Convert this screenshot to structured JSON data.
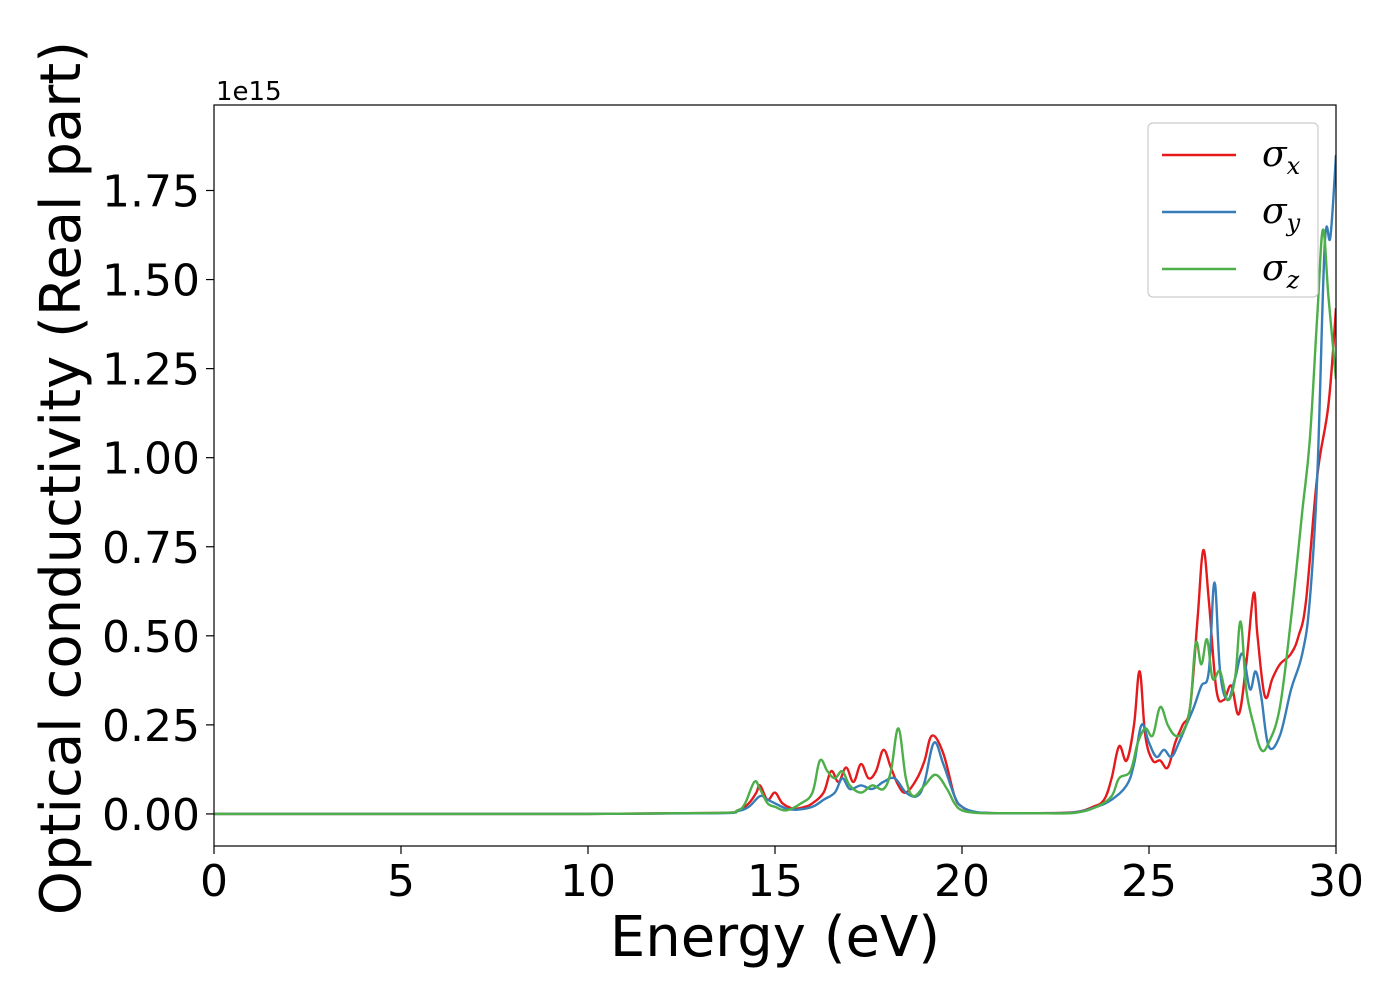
{
  "chart_data": {
    "type": "line",
    "xlabel": "Energy (eV)",
    "ylabel": "Optical conductivity (Real part)",
    "offset_text": "1e15",
    "y_scale_factor": 1000000000000000.0,
    "xlim": [
      0,
      30
    ],
    "ylim": [
      -0.09,
      1.99
    ],
    "xticks": [
      0,
      5,
      10,
      15,
      20,
      25,
      30
    ],
    "xtick_labels": [
      "0",
      "5",
      "10",
      "15",
      "20",
      "25",
      "30"
    ],
    "yticks": [
      0,
      0.25,
      0.5,
      0.75,
      1.0,
      1.25,
      1.5,
      1.75
    ],
    "ytick_labels": [
      "0.00",
      "0.25",
      "0.50",
      "0.75",
      "1.00",
      "1.25",
      "1.50",
      "1.75"
    ],
    "grid": false,
    "legend_position": "top-right",
    "series": [
      {
        "name": "σ",
        "subscript": "x",
        "color": "#e41a1c",
        "x": [
          0,
          5,
          10,
          13.5,
          14.0,
          14.3,
          14.5,
          14.6,
          14.8,
          15.0,
          15.2,
          15.5,
          15.8,
          16.0,
          16.3,
          16.5,
          16.7,
          16.9,
          17.1,
          17.3,
          17.5,
          17.7,
          17.9,
          18.1,
          18.3,
          18.5,
          18.8,
          19.0,
          19.2,
          19.5,
          19.8,
          20.0,
          20.3,
          20.7,
          21.0,
          22.0,
          23.0,
          23.5,
          23.8,
          24.0,
          24.2,
          24.4,
          24.6,
          24.75,
          24.9,
          25.1,
          25.3,
          25.5,
          25.7,
          25.9,
          26.1,
          26.3,
          26.45,
          26.6,
          26.8,
          27.0,
          27.2,
          27.4,
          27.6,
          27.8,
          27.9,
          28.1,
          28.3,
          28.5,
          28.8,
          29.0,
          29.2,
          29.5,
          29.8,
          30.0
        ],
        "values": [
          0,
          0,
          0,
          0.003,
          0.01,
          0.03,
          0.06,
          0.08,
          0.04,
          0.06,
          0.03,
          0.015,
          0.02,
          0.03,
          0.06,
          0.12,
          0.09,
          0.13,
          0.09,
          0.14,
          0.1,
          0.12,
          0.18,
          0.13,
          0.08,
          0.06,
          0.1,
          0.15,
          0.22,
          0.17,
          0.05,
          0.02,
          0.005,
          0.003,
          0.002,
          0.002,
          0.005,
          0.02,
          0.04,
          0.1,
          0.19,
          0.15,
          0.25,
          0.4,
          0.22,
          0.15,
          0.15,
          0.13,
          0.2,
          0.25,
          0.3,
          0.55,
          0.74,
          0.6,
          0.35,
          0.32,
          0.36,
          0.28,
          0.42,
          0.62,
          0.5,
          0.33,
          0.38,
          0.42,
          0.45,
          0.5,
          0.6,
          0.95,
          1.15,
          1.42
        ]
      },
      {
        "name": "σ",
        "subscript": "y",
        "color": "#377eb8",
        "x": [
          0,
          5,
          10,
          13.5,
          14.0,
          14.3,
          14.6,
          14.8,
          15.0,
          15.3,
          15.6,
          16.0,
          16.3,
          16.6,
          16.8,
          17.0,
          17.3,
          17.6,
          17.9,
          18.2,
          18.5,
          18.8,
          19.0,
          19.25,
          19.5,
          19.8,
          20.0,
          20.4,
          21.0,
          22.0,
          23.0,
          23.6,
          24.0,
          24.4,
          24.6,
          24.8,
          25.0,
          25.2,
          25.4,
          25.6,
          25.8,
          26.0,
          26.2,
          26.4,
          26.6,
          26.75,
          26.9,
          27.1,
          27.3,
          27.5,
          27.7,
          27.85,
          28.0,
          28.2,
          28.5,
          28.8,
          29.1,
          29.3,
          29.5,
          29.7,
          29.85,
          30.0
        ],
        "values": [
          0,
          0,
          0,
          0.002,
          0.008,
          0.02,
          0.05,
          0.04,
          0.03,
          0.015,
          0.012,
          0.02,
          0.04,
          0.06,
          0.1,
          0.07,
          0.08,
          0.07,
          0.09,
          0.1,
          0.06,
          0.05,
          0.09,
          0.2,
          0.14,
          0.05,
          0.02,
          0.005,
          0.002,
          0.002,
          0.004,
          0.02,
          0.04,
          0.08,
          0.14,
          0.25,
          0.2,
          0.16,
          0.18,
          0.16,
          0.2,
          0.25,
          0.3,
          0.36,
          0.4,
          0.65,
          0.4,
          0.32,
          0.38,
          0.45,
          0.35,
          0.4,
          0.33,
          0.19,
          0.22,
          0.35,
          0.45,
          0.6,
          0.95,
          1.6,
          1.62,
          1.85
        ]
      },
      {
        "name": "σ",
        "subscript": "z",
        "color": "#4daf4a",
        "x": [
          0,
          5,
          10,
          13.5,
          14.0,
          14.2,
          14.45,
          14.6,
          14.8,
          15.0,
          15.3,
          15.7,
          16.0,
          16.2,
          16.4,
          16.6,
          16.8,
          17.0,
          17.3,
          17.6,
          17.9,
          18.1,
          18.3,
          18.5,
          18.7,
          19.0,
          19.3,
          19.6,
          19.8,
          20.0,
          20.4,
          21.0,
          22.0,
          23.0,
          23.6,
          24.0,
          24.2,
          24.5,
          24.7,
          24.9,
          25.1,
          25.3,
          25.5,
          25.7,
          25.9,
          26.1,
          26.25,
          26.4,
          26.55,
          26.7,
          26.9,
          27.1,
          27.3,
          27.45,
          27.6,
          27.8,
          28.0,
          28.2,
          28.5,
          28.8,
          29.1,
          29.3,
          29.5,
          29.65,
          29.8,
          30.0
        ],
        "values": [
          0,
          0,
          0,
          0.003,
          0.01,
          0.03,
          0.09,
          0.07,
          0.03,
          0.02,
          0.01,
          0.03,
          0.06,
          0.15,
          0.12,
          0.1,
          0.12,
          0.08,
          0.06,
          0.08,
          0.07,
          0.12,
          0.24,
          0.1,
          0.05,
          0.08,
          0.11,
          0.07,
          0.03,
          0.01,
          0.003,
          0.002,
          0.002,
          0.003,
          0.02,
          0.05,
          0.1,
          0.12,
          0.2,
          0.24,
          0.22,
          0.3,
          0.25,
          0.22,
          0.23,
          0.3,
          0.48,
          0.42,
          0.49,
          0.38,
          0.4,
          0.32,
          0.38,
          0.54,
          0.35,
          0.25,
          0.18,
          0.2,
          0.3,
          0.55,
          0.85,
          1.05,
          1.4,
          1.64,
          1.45,
          1.22
        ]
      }
    ]
  }
}
